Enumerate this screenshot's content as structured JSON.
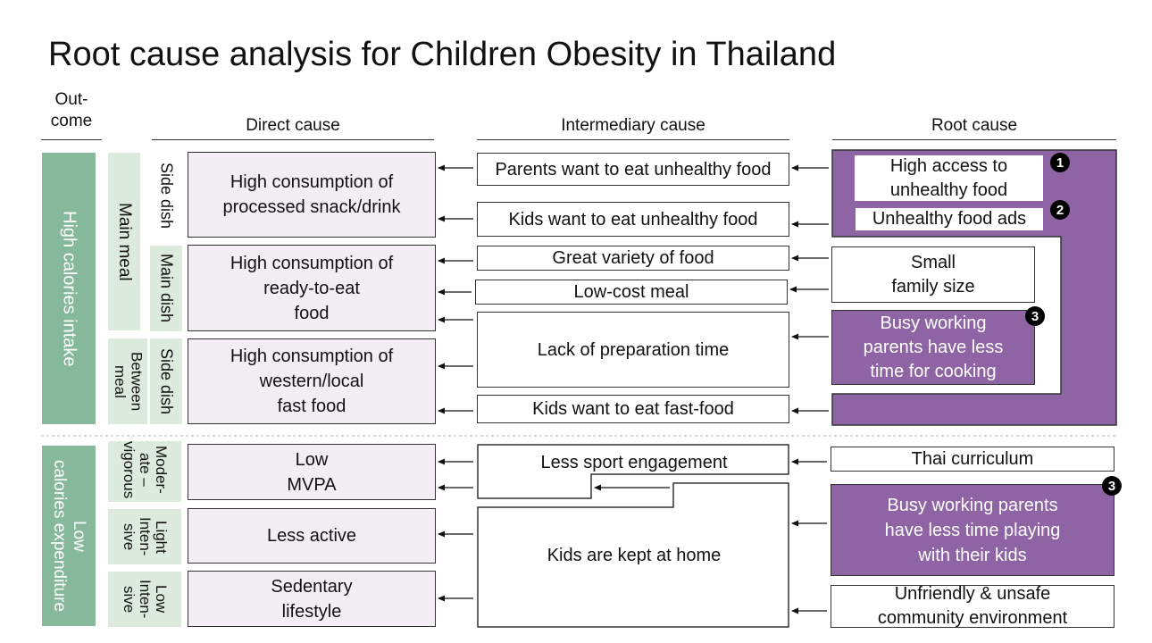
{
  "title": "Root cause analysis for Children Obesity in Thailand",
  "headers": {
    "outcome": "Out-\ncome",
    "direct": "Direct cause",
    "intermediary": "Intermediary cause",
    "root": "Root cause"
  },
  "outcomes": {
    "high_cal": "High calories intake",
    "low_cal": "Low\ncalories expenditure"
  },
  "meal_groups": {
    "main_meal": "Main meal",
    "between_meal": "Between\nmeal"
  },
  "sub_labels": {
    "side_dish_1": "Side dish",
    "main_dish": "Main dish",
    "side_dish_2": "Side dish",
    "moderate": "Moder-\nate –\nvigorous",
    "light": "Light\nInten-\nsive",
    "low": "Low\nInten-\nsive"
  },
  "direct": {
    "d1": "High consumption of\nprocessed snack/drink",
    "d2": "High consumption of\nready-to-eat\nfood",
    "d3": "High consumption of\nwestern/local\nfast food",
    "d4": "Low\nMVPA",
    "d5": "Less active",
    "d6": "Sedentary\nlifestyle"
  },
  "intermediary": {
    "i1": "Parents want to eat unhealthy food",
    "i2": "Kids want to eat unhealthy food",
    "i3": "Great variety of food",
    "i4": "Low-cost meal",
    "i5": "Lack of preparation time",
    "i6": "Kids want to eat fast-food",
    "i7": "Less sport engagement",
    "i8": "Kids are kept at home"
  },
  "root": {
    "r1": "High access to\nunhealthy food",
    "r2": "Unhealthy food ads",
    "r3": "Small\nfamily size",
    "r4": "Busy working\nparents have less\ntime for cooking",
    "r5": "Thai curriculum",
    "r6": "Busy working parents\nhave less time playing\nwith their kids",
    "r7": "Unfriendly & unsafe\ncommunity environment"
  },
  "badges": {
    "b1": "1",
    "b2": "2",
    "b3": "3",
    "b4": "3"
  },
  "colors": {
    "purple": "#8f64a4",
    "green_dark": "#86b99b",
    "green_light": "#dcebdd",
    "pink": "#f3eef3"
  }
}
